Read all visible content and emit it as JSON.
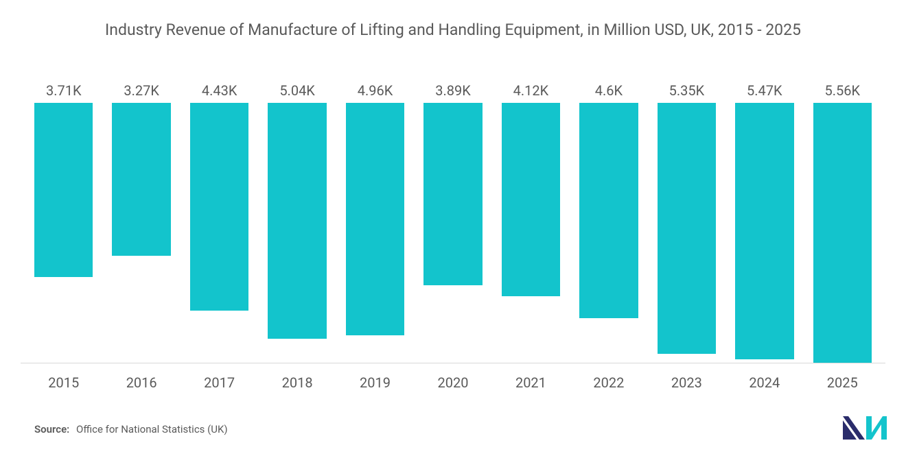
{
  "chart": {
    "type": "bar",
    "title": "Industry Revenue of Manufacture of Lifting and Handling Equipment, in Million USD, UK, 2015 - 2025",
    "title_fontsize": 23,
    "title_color": "#5a5a5a",
    "categories": [
      "2015",
      "2016",
      "2017",
      "2018",
      "2019",
      "2020",
      "2021",
      "2022",
      "2023",
      "2024",
      "2025"
    ],
    "values": [
      3710,
      3270,
      4430,
      5040,
      4960,
      3890,
      4120,
      4600,
      5350,
      5470,
      5560
    ],
    "value_labels": [
      "3.71K",
      "3.27K",
      "4.43K",
      "5.04K",
      "4.96K",
      "3.89K",
      "4.12K",
      "4.6K",
      "5.35K",
      "5.47K",
      "5.56K"
    ],
    "bar_color": "#13c4cc",
    "value_label_fontsize": 20,
    "value_label_color": "#5a5a5a",
    "xlabel_fontsize": 20,
    "xlabel_color": "#5a5a5a",
    "ylim": [
      0,
      6000
    ],
    "background_color": "#ffffff",
    "baseline_color": "#d9d9d9",
    "bar_gap": 28
  },
  "footer": {
    "source_label": "Source:",
    "source_text": "Office for National Statistics (UK)",
    "fontsize": 15,
    "color": "#5a5a5a"
  },
  "logo": {
    "fill_left": "#2a2c6b",
    "fill_right": "#14c4cc"
  }
}
